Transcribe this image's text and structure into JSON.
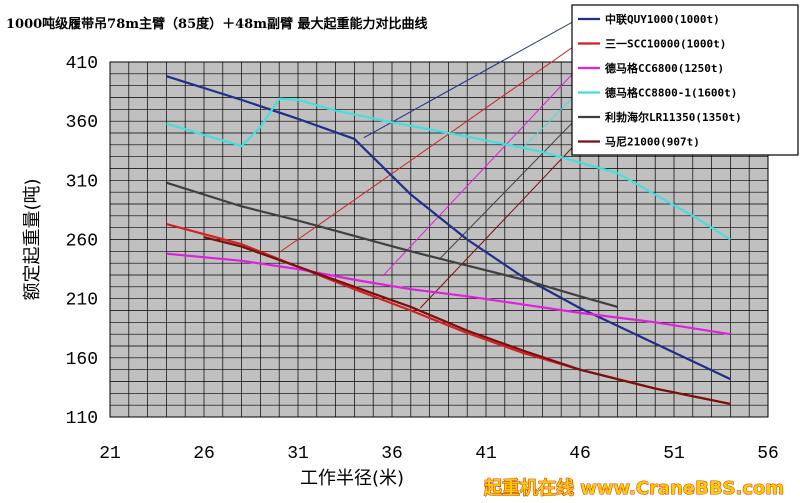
{
  "chart_data": {
    "type": "line",
    "title": "1000吨级履带吊78m主臂（85度）＋48m副臂 最大起重能力对比曲线",
    "xlabel": "工作半径(米)",
    "ylabel": "额定起重量(吨)",
    "xlim": [
      21,
      56
    ],
    "ylim": [
      110,
      410
    ],
    "xticks": [
      21,
      26,
      31,
      36,
      41,
      46,
      51,
      56
    ],
    "yticks": [
      110,
      160,
      210,
      260,
      310,
      360,
      410
    ],
    "grid": true,
    "legend_position": "top-right",
    "colors": {
      "background": "#ffffff",
      "plot_area": "#c0c0c0",
      "grid": "#000000"
    },
    "series": [
      {
        "name": "中联QUY1000(1000t)",
        "color": "#1f2f8a",
        "x": [
          24,
          28,
          31,
          34,
          37,
          40,
          43,
          46,
          50,
          54
        ],
        "y": [
          398,
          378,
          362,
          345,
          298,
          260,
          228,
          202,
          172,
          142
        ]
      },
      {
        "name": "三一SCC10000(1000t)",
        "color": "#d42020",
        "x": [
          24,
          28,
          31,
          34,
          37,
          40,
          43,
          46,
          50,
          54
        ],
        "y": [
          273,
          256,
          237,
          218,
          200,
          181,
          164,
          150,
          134,
          121
        ]
      },
      {
        "name": "德马格CC6800(1250t)",
        "color": "#e020e0",
        "x": [
          24,
          28,
          31,
          34,
          37,
          40,
          43,
          46,
          50,
          54
        ],
        "y": [
          248,
          242,
          235,
          226,
          218,
          212,
          205,
          198,
          190,
          180
        ]
      },
      {
        "name": "德马格CC8800-1(1600t)",
        "color": "#40e0e0",
        "x": [
          24,
          26.5,
          28,
          29,
          30,
          31,
          33,
          36,
          40,
          44,
          48,
          52,
          54
        ],
        "y": [
          358,
          346,
          339,
          355,
          379,
          378,
          369,
          359,
          347,
          334,
          316,
          280,
          260
        ]
      },
      {
        "name": "利勃海尔LR11350(1350t)",
        "color": "#404040",
        "x": [
          24,
          28,
          31,
          34,
          37,
          40,
          43,
          46,
          48
        ],
        "y": [
          308,
          288,
          276,
          263,
          250,
          238,
          226,
          212,
          203
        ]
      },
      {
        "name": "马尼21000(907t)",
        "color": "#7a0f0f",
        "x": [
          26,
          28,
          31,
          34,
          37,
          40,
          43,
          46,
          50,
          54
        ],
        "y": [
          262,
          254,
          237,
          220,
          203,
          183,
          166,
          150,
          134,
          121
        ]
      }
    ]
  },
  "watermark": {
    "text": "起重机在线 www.CraneBBS.com"
  }
}
